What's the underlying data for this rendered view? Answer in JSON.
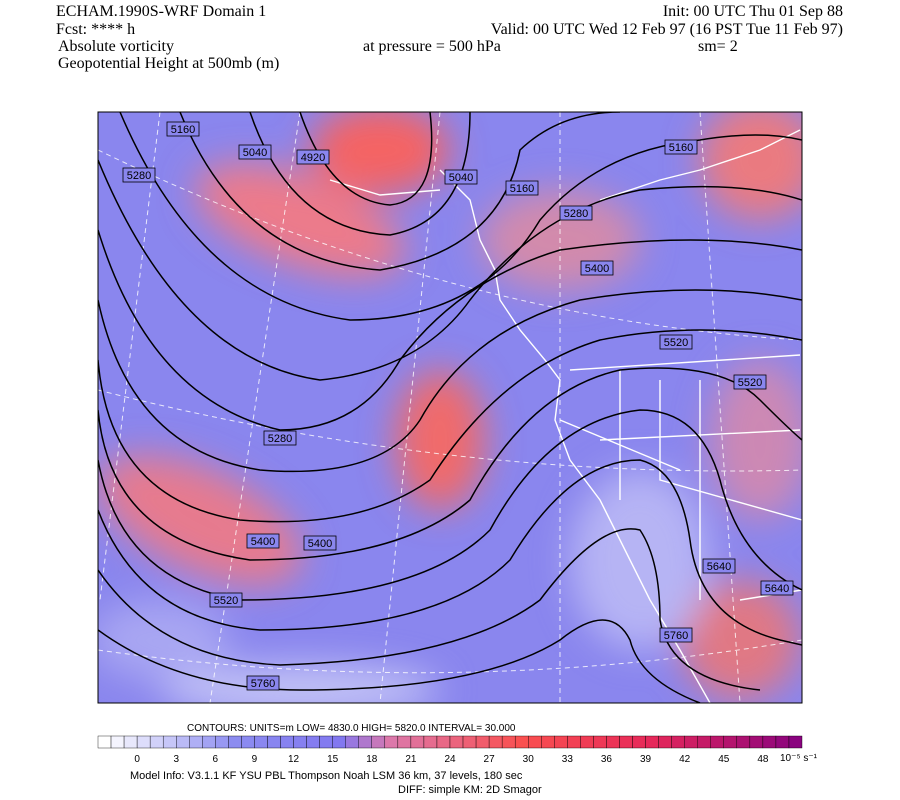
{
  "header": {
    "model": "ECHAM.1990S-WRF Domain 1",
    "forecast": "Fcst: **** h",
    "field1": "Absolute vorticity",
    "field2": "Geopotential Height at 500mb (m)",
    "init": "Init: 00 UTC Thu 01 Sep 88",
    "valid": "Valid: 00 UTC Wed 12 Feb 97 (16 PST Tue 11 Feb 97)",
    "pressure": "at pressure =  500 hPa",
    "smoothing": "sm= 2"
  },
  "contour_labels": [
    "5160",
    "5040",
    "4920",
    "5280",
    "5040",
    "5160",
    "5280",
    "5400",
    "5160",
    "5520",
    "5520",
    "5280",
    "5400",
    "5400",
    "5520",
    "5640",
    "5640",
    "5760",
    "5760"
  ],
  "contour_info": "CONTOURS:  UNITS=m  LOW=   4830.0     HIGH=  5820.0     INTERVAL=    30.000",
  "colorbar": {
    "labels": [
      "0",
      "3",
      "6",
      "9",
      "12",
      "15",
      "18",
      "21",
      "24",
      "27",
      "30",
      "33",
      "36",
      "39",
      "42",
      "45",
      "48"
    ],
    "unit": "10⁻⁵ s⁻¹"
  },
  "footer": {
    "model_info": "Model Info: V3.1.1    KF      YSU PBL   Thompson     Noah LSM   36 km,    37 levels,   180 sec",
    "diff": "DIFF: simple KM: 2D Smagor"
  }
}
